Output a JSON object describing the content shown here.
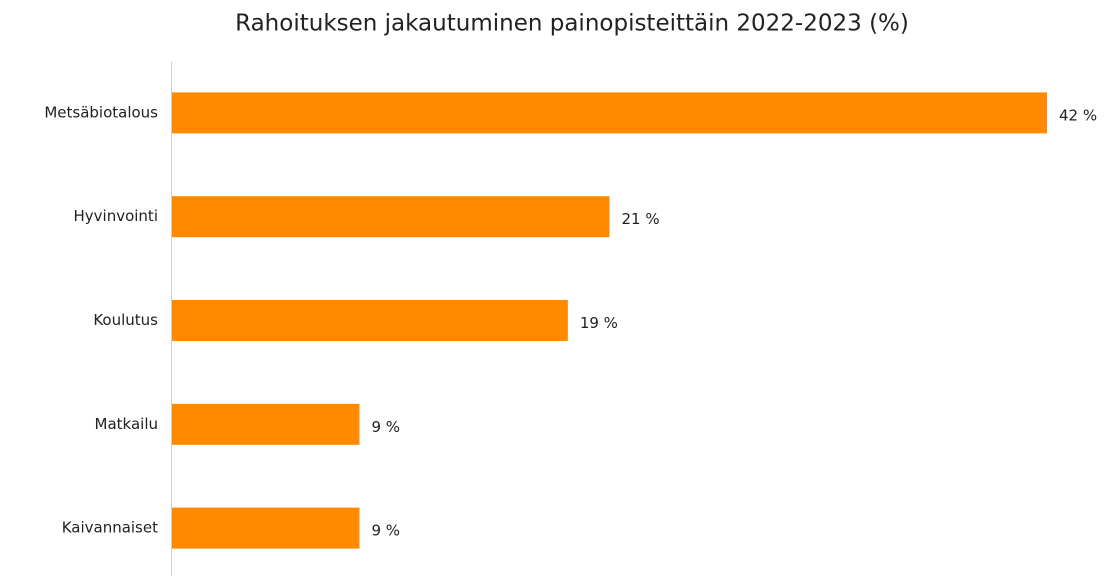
{
  "chart_data": {
    "type": "bar",
    "orientation": "horizontal",
    "title": "Rahoituksen jakautuminen painopisteittäin 2022-2023 (%)",
    "categories": [
      "Metsäbiotalous",
      "Hyvinvointi",
      "Koulutus",
      "Matkailu",
      "Kaivannaiset"
    ],
    "values": [
      42,
      21,
      19,
      9,
      9
    ],
    "value_labels": [
      "42 %",
      "21 %",
      "19 %",
      "9 %",
      "9 %"
    ],
    "color": "#ff8a00"
  }
}
